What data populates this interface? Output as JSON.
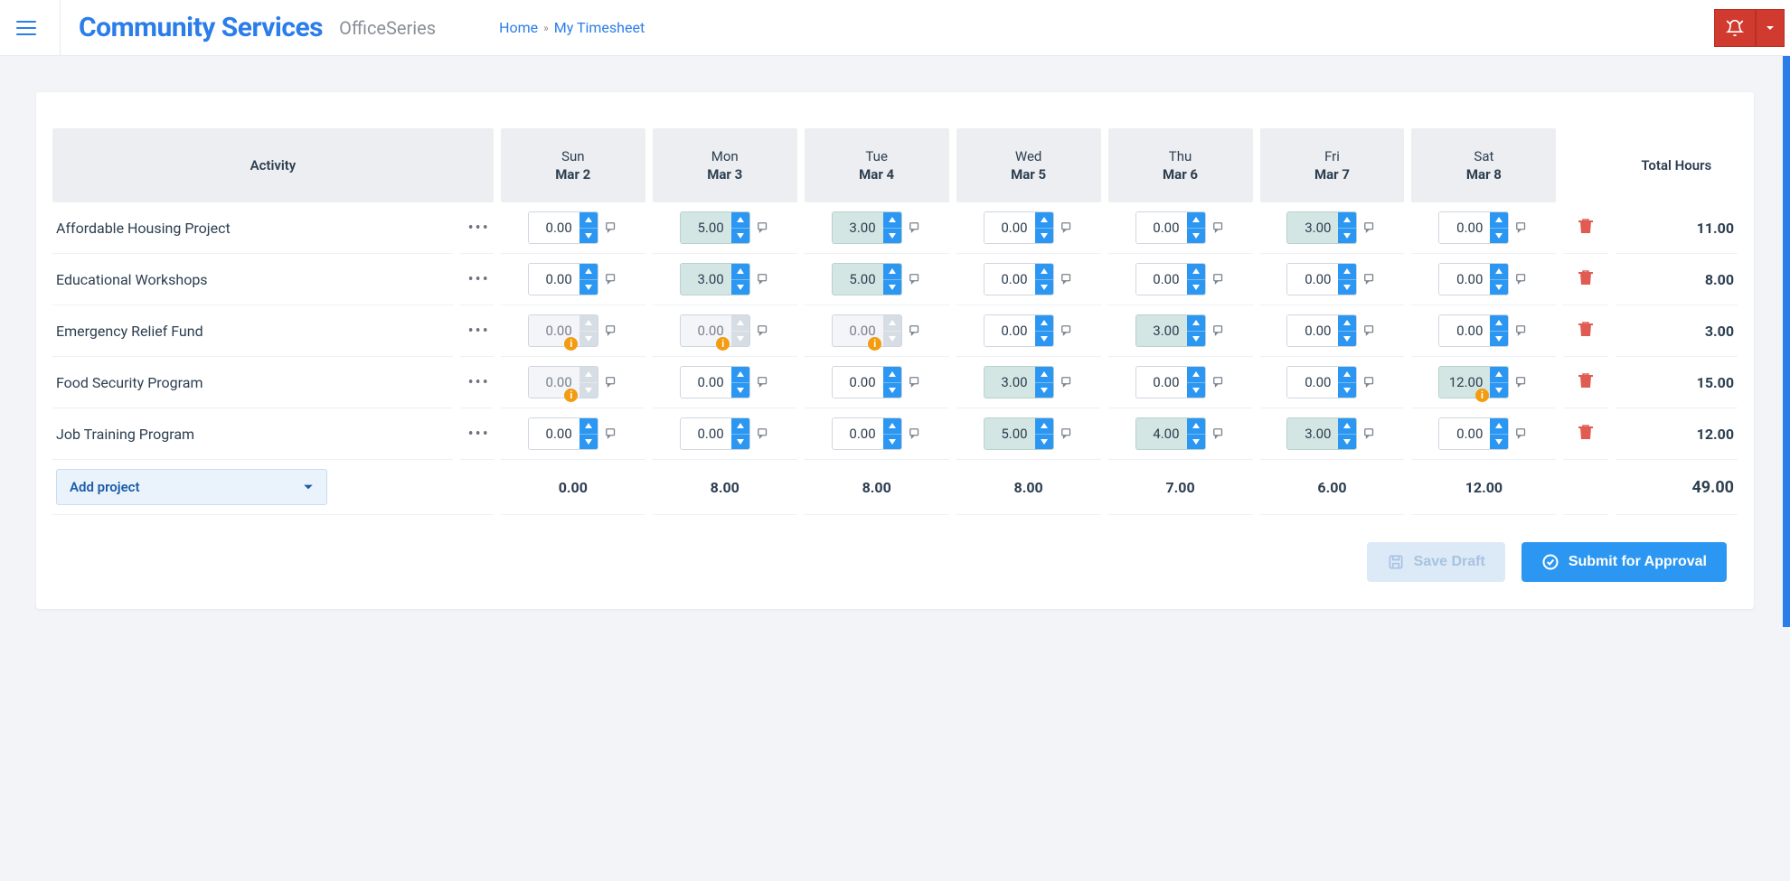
{
  "header": {
    "brand": "Community Services",
    "sub_brand": "OfficeSeries",
    "breadcrumb_home": "Home",
    "breadcrumb_current": "My Timesheet"
  },
  "colors": {
    "accent": "#2b7de9",
    "alarm_bg": "#d13a2e",
    "spin_bg": "#2b97f2",
    "filled_bg": "#d4e6e4",
    "warn": "#f39c12",
    "trash": "#e05b52",
    "header_cell_bg": "#eceef1",
    "addproj_bg": "#eaf3fb"
  },
  "columns": {
    "activity": "Activity",
    "total": "Total Hours",
    "days": [
      {
        "dow": "Sun",
        "md": "Mar 2"
      },
      {
        "dow": "Mon",
        "md": "Mar 3"
      },
      {
        "dow": "Tue",
        "md": "Mar 4"
      },
      {
        "dow": "Wed",
        "md": "Mar 5"
      },
      {
        "dow": "Thu",
        "md": "Mar 6"
      },
      {
        "dow": "Fri",
        "md": "Mar 7"
      },
      {
        "dow": "Sat",
        "md": "Mar 8"
      }
    ]
  },
  "rows": [
    {
      "name": "Affordable Housing Project",
      "cells": [
        {
          "v": "0.00",
          "filled": false,
          "locked": false,
          "warn": false
        },
        {
          "v": "5.00",
          "filled": true,
          "locked": false,
          "warn": false
        },
        {
          "v": "3.00",
          "filled": true,
          "locked": false,
          "warn": false
        },
        {
          "v": "0.00",
          "filled": false,
          "locked": false,
          "warn": false
        },
        {
          "v": "0.00",
          "filled": false,
          "locked": false,
          "warn": false
        },
        {
          "v": "3.00",
          "filled": true,
          "locked": false,
          "warn": false
        },
        {
          "v": "0.00",
          "filled": false,
          "locked": false,
          "warn": false
        }
      ],
      "total": "11.00"
    },
    {
      "name": "Educational Workshops",
      "cells": [
        {
          "v": "0.00",
          "filled": false,
          "locked": false,
          "warn": false
        },
        {
          "v": "3.00",
          "filled": true,
          "locked": false,
          "warn": false
        },
        {
          "v": "5.00",
          "filled": true,
          "locked": false,
          "warn": false
        },
        {
          "v": "0.00",
          "filled": false,
          "locked": false,
          "warn": false
        },
        {
          "v": "0.00",
          "filled": false,
          "locked": false,
          "warn": false
        },
        {
          "v": "0.00",
          "filled": false,
          "locked": false,
          "warn": false
        },
        {
          "v": "0.00",
          "filled": false,
          "locked": false,
          "warn": false
        }
      ],
      "total": "8.00"
    },
    {
      "name": "Emergency Relief Fund",
      "cells": [
        {
          "v": "0.00",
          "filled": false,
          "locked": true,
          "warn": true
        },
        {
          "v": "0.00",
          "filled": false,
          "locked": true,
          "warn": true
        },
        {
          "v": "0.00",
          "filled": false,
          "locked": true,
          "warn": true
        },
        {
          "v": "0.00",
          "filled": false,
          "locked": false,
          "warn": false
        },
        {
          "v": "3.00",
          "filled": true,
          "locked": false,
          "warn": false
        },
        {
          "v": "0.00",
          "filled": false,
          "locked": false,
          "warn": false
        },
        {
          "v": "0.00",
          "filled": false,
          "locked": false,
          "warn": false
        }
      ],
      "total": "3.00"
    },
    {
      "name": "Food Security Program",
      "cells": [
        {
          "v": "0.00",
          "filled": false,
          "locked": true,
          "warn": true
        },
        {
          "v": "0.00",
          "filled": false,
          "locked": false,
          "warn": false
        },
        {
          "v": "0.00",
          "filled": false,
          "locked": false,
          "warn": false
        },
        {
          "v": "3.00",
          "filled": true,
          "locked": false,
          "warn": false
        },
        {
          "v": "0.00",
          "filled": false,
          "locked": false,
          "warn": false
        },
        {
          "v": "0.00",
          "filled": false,
          "locked": false,
          "warn": false
        },
        {
          "v": "12.00",
          "filled": true,
          "locked": false,
          "warn": true
        }
      ],
      "total": "15.00"
    },
    {
      "name": "Job Training Program",
      "cells": [
        {
          "v": "0.00",
          "filled": false,
          "locked": false,
          "warn": false
        },
        {
          "v": "0.00",
          "filled": false,
          "locked": false,
          "warn": false
        },
        {
          "v": "0.00",
          "filled": false,
          "locked": false,
          "warn": false
        },
        {
          "v": "5.00",
          "filled": true,
          "locked": false,
          "warn": false
        },
        {
          "v": "4.00",
          "filled": true,
          "locked": false,
          "warn": false
        },
        {
          "v": "3.00",
          "filled": true,
          "locked": false,
          "warn": false
        },
        {
          "v": "0.00",
          "filled": false,
          "locked": false,
          "warn": false
        }
      ],
      "total": "12.00"
    }
  ],
  "totals": {
    "add_project_label": "Add project",
    "columns": [
      "0.00",
      "8.00",
      "8.00",
      "8.00",
      "7.00",
      "6.00",
      "12.00"
    ],
    "grand": "49.00"
  },
  "buttons": {
    "save_draft": "Save Draft",
    "submit": "Submit for Approval"
  }
}
